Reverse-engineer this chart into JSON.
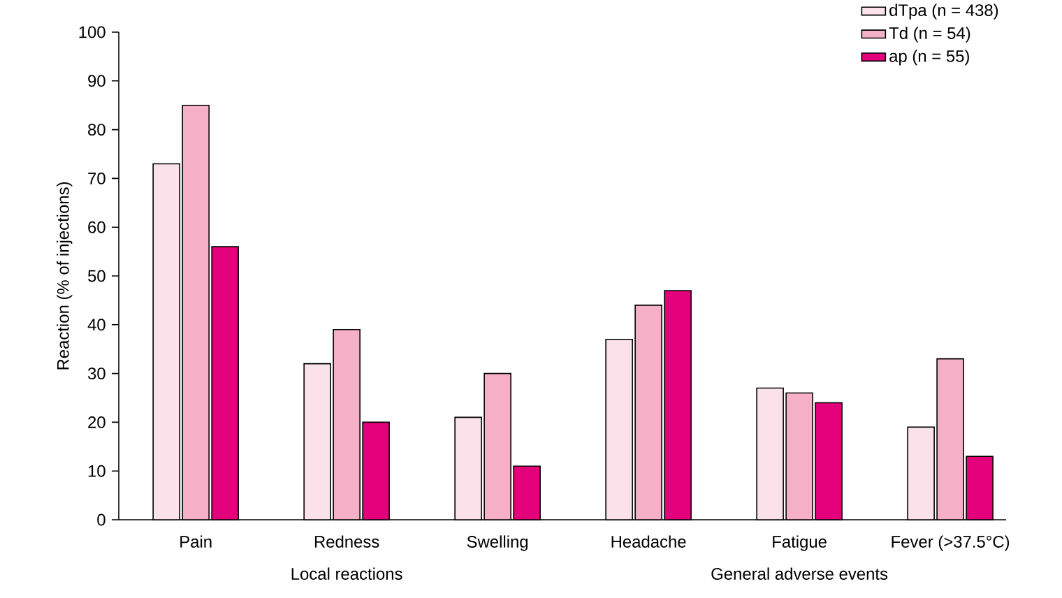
{
  "chart_data": {
    "type": "bar",
    "ylabel": "Reaction (% of injections)",
    "categories": [
      "Pain",
      "Redness",
      "Swelling",
      "Headache",
      "Fatigue",
      "Fever (>37.5°C)"
    ],
    "series": [
      {
        "name": "dTpa (n = 438)",
        "color": "#fbe2ea",
        "values": [
          73,
          32,
          21,
          37,
          27,
          19
        ]
      },
      {
        "name": "Td (n = 54)",
        "color": "#f5b0c8",
        "values": [
          85,
          39,
          30,
          44,
          26,
          33
        ]
      },
      {
        "name": "ap (n = 55)",
        "color": "#e4007a",
        "values": [
          56,
          20,
          11,
          47,
          24,
          13
        ]
      }
    ],
    "ylim": [
      0,
      100
    ],
    "yticks": [
      0,
      10,
      20,
      30,
      40,
      50,
      60,
      70,
      80,
      90,
      100
    ],
    "annotations": [
      "Local reactions",
      "General adverse events"
    ],
    "legend": "top right",
    "grid": false
  }
}
